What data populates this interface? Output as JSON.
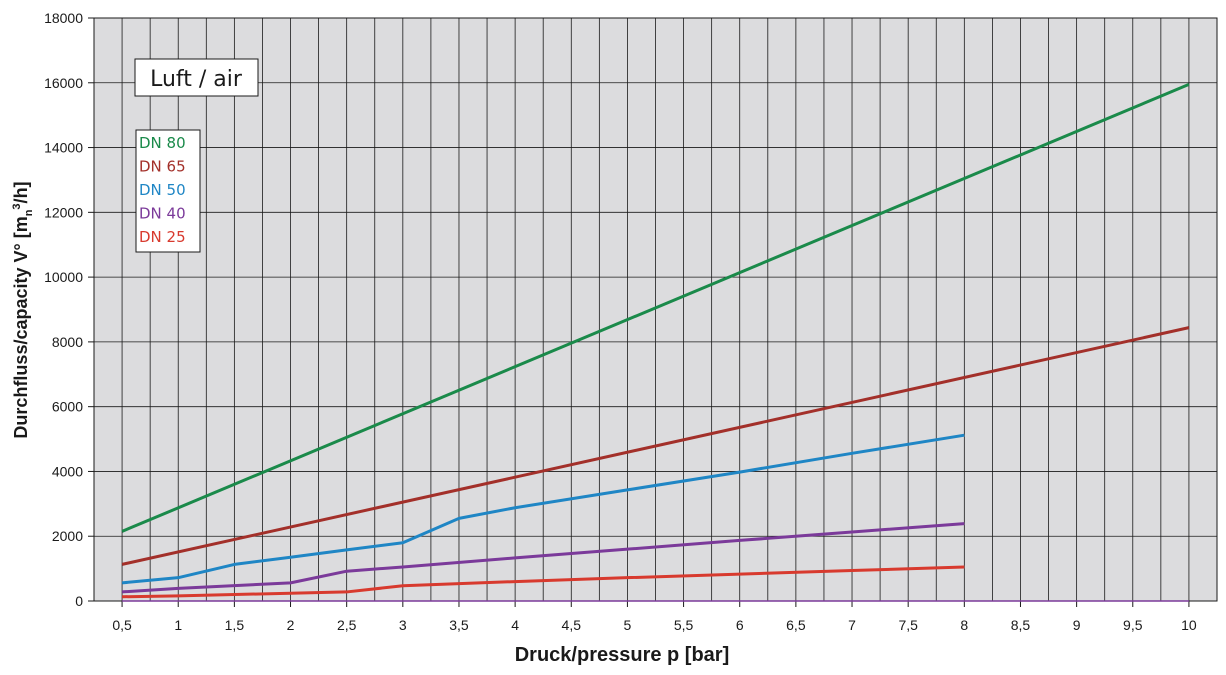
{
  "chart_data": {
    "type": "line",
    "title": "Luft / air",
    "xlabel": "Druck/pressure p [bar]",
    "ylabel": "Durchfluss/capacity V° [m",
    "ylabel_sub": "n",
    "ylabel_sup": "3",
    "ylabel_end": "/h]",
    "xlim": [
      0.25,
      10.25
    ],
    "ylim": [
      0,
      18000
    ],
    "x_ticks": [
      0.5,
      1,
      1.5,
      2,
      2.5,
      3,
      3.5,
      4,
      4.5,
      5,
      5.5,
      6,
      6.5,
      7,
      7.5,
      8,
      8.5,
      9,
      9.5,
      10
    ],
    "x_tick_labels": [
      "0,5",
      "1",
      "1,5",
      "2",
      "2,5",
      "3",
      "3,5",
      "4",
      "4,5",
      "5",
      "5,5",
      "6",
      "6,5",
      "7",
      "7,5",
      "8",
      "8,5",
      "9",
      "9,5",
      "10"
    ],
    "y_ticks": [
      0,
      2000,
      4000,
      6000,
      8000,
      10000,
      12000,
      14000,
      16000,
      18000
    ],
    "y_tick_labels": [
      "0",
      "2000",
      "4000",
      "6000",
      "8000",
      "10000",
      "12000",
      "14000",
      "16000",
      "18000"
    ],
    "grid": true,
    "legend_position": "top-left",
    "series": [
      {
        "name": "DN 80",
        "color": "#1a8a4a",
        "x": [
          0.5,
          10
        ],
        "y": [
          2150,
          15950
        ]
      },
      {
        "name": "DN 65",
        "color": "#a3302a",
        "x": [
          0.5,
          10
        ],
        "y": [
          1130,
          8440
        ]
      },
      {
        "name": "DN 50",
        "color": "#1f86c5",
        "x": [
          0.5,
          1,
          1.5,
          2,
          2.5,
          3,
          3.5,
          4,
          5,
          6,
          7,
          8
        ],
        "y": [
          560,
          720,
          1130,
          1350,
          1580,
          1800,
          2550,
          2880,
          3430,
          3980,
          4560,
          5120
        ]
      },
      {
        "name": "DN 40",
        "color": "#7b3a9a",
        "x": [
          0.5,
          1,
          2,
          2.5,
          3,
          4,
          5,
          6,
          7,
          8
        ],
        "y": [
          280,
          390,
          560,
          920,
          1050,
          1330,
          1600,
          1870,
          2130,
          2390
        ]
      },
      {
        "name": "DN 25",
        "color": "#d83a2e",
        "x": [
          0.5,
          1,
          2,
          2.5,
          3,
          4,
          5,
          6,
          7,
          8
        ],
        "y": [
          130,
          160,
          240,
          280,
          470,
          600,
          720,
          830,
          940,
          1050
        ]
      }
    ],
    "baseline_series": {
      "color": "#7b3a9a",
      "x": [
        0.5,
        10
      ],
      "y": [
        0,
        0
      ]
    }
  }
}
